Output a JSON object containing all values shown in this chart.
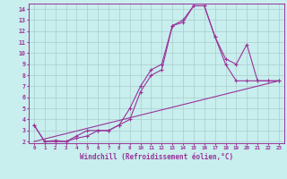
{
  "xlabel": "Windchill (Refroidissement éolien,°C)",
  "background_color": "#c8eeee",
  "grid_color": "#aacccc",
  "line_color": "#993399",
  "x_min": 0,
  "x_max": 23,
  "y_min": 2,
  "y_max": 14,
  "line1_x": [
    0,
    1,
    2,
    3,
    4,
    5,
    6,
    7,
    8,
    9,
    10,
    11,
    12,
    13,
    14,
    15,
    16,
    17,
    18,
    19,
    20,
    21,
    22,
    23
  ],
  "line1_y": [
    3.5,
    2.0,
    2.0,
    2.0,
    2.5,
    3.0,
    3.0,
    3.0,
    3.5,
    4.0,
    6.5,
    8.0,
    8.5,
    12.5,
    13.0,
    14.3,
    14.3,
    11.5,
    9.0,
    7.5,
    7.5,
    7.5,
    7.5,
    7.5
  ],
  "line2_x": [
    0,
    1,
    2,
    3,
    4,
    5,
    6,
    7,
    8,
    9,
    10,
    11,
    12,
    13,
    14,
    15,
    16,
    17,
    18,
    19,
    20,
    21,
    22,
    23
  ],
  "line2_y": [
    3.5,
    2.0,
    2.1,
    2.0,
    2.3,
    2.5,
    3.0,
    3.0,
    3.5,
    5.0,
    7.0,
    8.5,
    9.0,
    12.5,
    12.8,
    14.3,
    14.3,
    11.5,
    9.5,
    9.0,
    10.8,
    7.5,
    7.5,
    7.5
  ],
  "line3_x": [
    0,
    23
  ],
  "line3_y": [
    2.0,
    7.5
  ],
  "x_ticks": [
    0,
    1,
    2,
    3,
    4,
    5,
    6,
    7,
    8,
    9,
    10,
    11,
    12,
    13,
    14,
    15,
    16,
    17,
    18,
    19,
    20,
    21,
    22,
    23
  ],
  "y_ticks": [
    2,
    3,
    4,
    5,
    6,
    7,
    8,
    9,
    10,
    11,
    12,
    13,
    14
  ]
}
